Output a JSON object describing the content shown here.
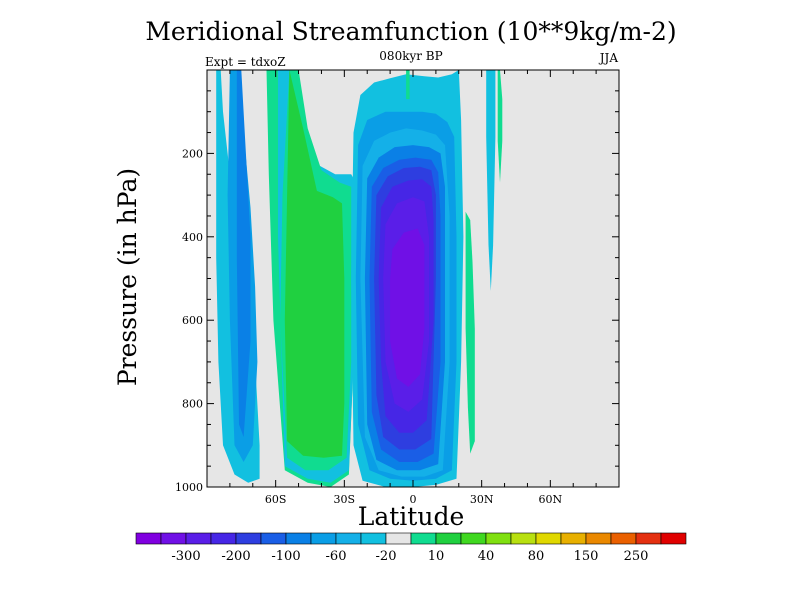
{
  "chart_data": {
    "type": "contour",
    "title": "Meridional Streamfunction (10**9kg/m-2)",
    "subtitle_center": "080kyr BP",
    "subtitle_left": "Expt = tdxoZ",
    "subtitle_right": "JJA",
    "xlabel": "Latitude",
    "ylabel": "Pressure (in hPa)",
    "xlim": [
      -90,
      90
    ],
    "ylim": [
      1000,
      0
    ],
    "x_ticks": [
      {
        "value": -60,
        "label": "60S"
      },
      {
        "value": -30,
        "label": "30S"
      },
      {
        "value": 0,
        "label": "0"
      },
      {
        "value": 30,
        "label": "30N"
      },
      {
        "value": 60,
        "label": "60N"
      }
    ],
    "y_ticks": [
      {
        "value": 200,
        "label": "200"
      },
      {
        "value": 400,
        "label": "400"
      },
      {
        "value": 600,
        "label": "600"
      },
      {
        "value": 800,
        "label": "800"
      },
      {
        "value": 1000,
        "label": "1000"
      }
    ],
    "background_color": "#e6e6e6",
    "colorbar": {
      "colors": [
        "#8000e0",
        "#7010e6",
        "#5a1ee8",
        "#4626e6",
        "#2e3ee0",
        "#1a5ee6",
        "#0a80e6",
        "#0a9ee6",
        "#14b0e8",
        "#12c0e0",
        "#e6e6e6",
        "#10dc90",
        "#20d040",
        "#40d820",
        "#80e010",
        "#b8e010",
        "#e0d800",
        "#e8b000",
        "#ea8800",
        "#ea6000",
        "#e43010",
        "#e00000"
      ],
      "labels": [
        {
          "after_index": 1,
          "text": "-300"
        },
        {
          "after_index": 3,
          "text": "-200"
        },
        {
          "after_index": 5,
          "text": "-100"
        },
        {
          "after_index": 7,
          "text": "-60"
        },
        {
          "after_index": 9,
          "text": "-20"
        },
        {
          "after_index": 11,
          "text": "10"
        },
        {
          "after_index": 13,
          "text": "40"
        },
        {
          "after_index": 15,
          "text": "80"
        },
        {
          "after_index": 17,
          "text": "150"
        },
        {
          "after_index": 19,
          "text": "250"
        }
      ]
    },
    "contour_regions": [
      {
        "color": "#12c0e0",
        "lat": [
          -86,
          -84,
          -83,
          -80,
          -77,
          -72,
          -69,
          -67,
          -67,
          -72,
          -78,
          -83,
          -85,
          -86
        ],
        "p": [
          0,
          0,
          100,
          250,
          390,
          540,
          700,
          900,
          980,
          990,
          970,
          900,
          700,
          450
        ]
      },
      {
        "color": "#0a9ee6",
        "lat": [
          -80,
          -76,
          -74,
          -71,
          -69,
          -68,
          -70,
          -74,
          -78,
          -80,
          -81
        ],
        "p": [
          0,
          0,
          150,
          330,
          520,
          700,
          900,
          940,
          900,
          600,
          300
        ]
      },
      {
        "color": "#0a80e6",
        "lat": [
          -77,
          -75,
          -73,
          -71,
          -71,
          -74,
          -76,
          -77
        ],
        "p": [
          0,
          0,
          200,
          400,
          650,
          880,
          850,
          450
        ]
      },
      {
        "color": "#10dc90",
        "lat": [
          -64,
          -58,
          -53,
          -47,
          -40,
          -31,
          -26,
          -26,
          -28,
          -36,
          -46,
          -56,
          -61,
          -63
        ],
        "p": [
          0,
          0,
          140,
          240,
          270,
          270,
          280,
          700,
          970,
          1000,
          990,
          960,
          600,
          250
        ]
      },
      {
        "color": "#12c0e0",
        "lat": [
          -59,
          -54,
          -51,
          -44,
          -34,
          -27,
          -26,
          -26,
          -28,
          -36,
          -46,
          -56,
          -59
        ],
        "p": [
          0,
          0,
          130,
          220,
          250,
          250,
          260,
          700,
          960,
          990,
          980,
          950,
          400
        ]
      },
      {
        "color": "#10dc90",
        "lat": [
          -54,
          -50,
          -46,
          -40,
          -32,
          -27,
          -27,
          -29,
          -37,
          -47,
          -55,
          -58,
          -57
        ],
        "p": [
          0,
          0,
          140,
          240,
          270,
          280,
          700,
          930,
          960,
          960,
          930,
          600,
          300
        ]
      },
      {
        "color": "#20d040",
        "lat": [
          -54,
          -48,
          -42,
          -35,
          -31,
          -30,
          -30,
          -31,
          -39,
          -48,
          -55,
          -56,
          -55
        ],
        "p": [
          0,
          140,
          290,
          305,
          320,
          500,
          800,
          925,
          930,
          925,
          890,
          600,
          300
        ]
      },
      {
        "color": "#12c0e0",
        "lat": [
          -26,
          -23,
          -17,
          -10,
          -3,
          5,
          11,
          17,
          20,
          21,
          22,
          21,
          19,
          10,
          0,
          -12,
          -22,
          -26,
          -27
        ],
        "p": [
          150,
          60,
          30,
          20,
          10,
          15,
          18,
          10,
          0,
          120,
          400,
          700,
          980,
          995,
          1000,
          1000,
          985,
          900,
          500
        ]
      },
      {
        "color": "#0a9ee6",
        "lat": [
          -24,
          -20,
          -12,
          -4,
          4,
          10,
          15,
          18,
          19,
          19,
          17,
          10,
          0,
          -10,
          -19,
          -24,
          -25
        ],
        "p": [
          180,
          120,
          100,
          100,
          100,
          105,
          125,
          160,
          400,
          700,
          960,
          980,
          985,
          980,
          960,
          850,
          500
        ]
      },
      {
        "color": "#14b0e8",
        "lat": [
          -22,
          -17,
          -10,
          -3,
          4,
          10,
          14,
          16,
          16,
          13,
          5,
          -5,
          -15,
          -21,
          -23
        ],
        "p": [
          230,
          170,
          150,
          140,
          145,
          155,
          180,
          350,
          700,
          960,
          975,
          975,
          960,
          880,
          500
        ]
      },
      {
        "color": "#0a80e6",
        "lat": [
          -20,
          -15,
          -8,
          0,
          7,
          12,
          14,
          14,
          11,
          3,
          -7,
          -16,
          -20,
          -21
        ],
        "p": [
          260,
          210,
          185,
          180,
          185,
          200,
          280,
          700,
          945,
          960,
          960,
          935,
          850,
          500
        ]
      },
      {
        "color": "#1a5ee6",
        "lat": [
          -18,
          -13,
          -6,
          1,
          8,
          11,
          12,
          12,
          9,
          2,
          -6,
          -14,
          -18,
          -19
        ],
        "p": [
          280,
          235,
          215,
          210,
          215,
          245,
          350,
          700,
          920,
          940,
          940,
          910,
          820,
          500
        ]
      },
      {
        "color": "#2e3ee0",
        "lat": [
          -16,
          -11,
          -4,
          3,
          8,
          10,
          10,
          8,
          1,
          -6,
          -13,
          -16,
          -17
        ],
        "p": [
          300,
          255,
          235,
          232,
          240,
          300,
          500,
          885,
          910,
          910,
          880,
          780,
          500
        ]
      },
      {
        "color": "#4626e6",
        "lat": [
          -14,
          -9,
          -2,
          4,
          8,
          9,
          9,
          6,
          0,
          -6,
          -12,
          -14,
          -15
        ],
        "p": [
          330,
          280,
          265,
          262,
          280,
          360,
          600,
          840,
          870,
          870,
          830,
          700,
          500
        ]
      },
      {
        "color": "#5a1ee8",
        "lat": [
          -12,
          -7,
          0,
          5,
          7,
          7,
          4,
          -2,
          -8,
          -12,
          -13
        ],
        "p": [
          370,
          320,
          305,
          315,
          400,
          650,
          790,
          820,
          800,
          700,
          500
        ]
      },
      {
        "color": "#7010e6",
        "lat": [
          -9,
          -4,
          2,
          5,
          5,
          3,
          -2,
          -7,
          -10,
          -10
        ],
        "p": [
          430,
          390,
          380,
          420,
          620,
          730,
          760,
          740,
          650,
          500
        ]
      },
      {
        "color": "#10dc90",
        "lat": [
          -3,
          -1.5,
          -1.5,
          -3
        ],
        "p": [
          0,
          0,
          70,
          70
        ]
      },
      {
        "color": "#10dc90",
        "lat": [
          23,
          25,
          26,
          27,
          27,
          25,
          24,
          23,
          23
        ],
        "p": [
          340,
          360,
          460,
          620,
          890,
          920,
          810,
          620,
          420
        ]
      },
      {
        "color": "#12c0e0",
        "lat": [
          32,
          36,
          36,
          35,
          34,
          33,
          32
        ],
        "p": [
          0,
          0,
          160,
          420,
          530,
          420,
          160
        ]
      },
      {
        "color": "#10dc90",
        "lat": [
          37,
          38,
          39,
          39,
          38,
          37,
          37
        ],
        "p": [
          0,
          0,
          70,
          170,
          270,
          170,
          70
        ]
      }
    ]
  }
}
